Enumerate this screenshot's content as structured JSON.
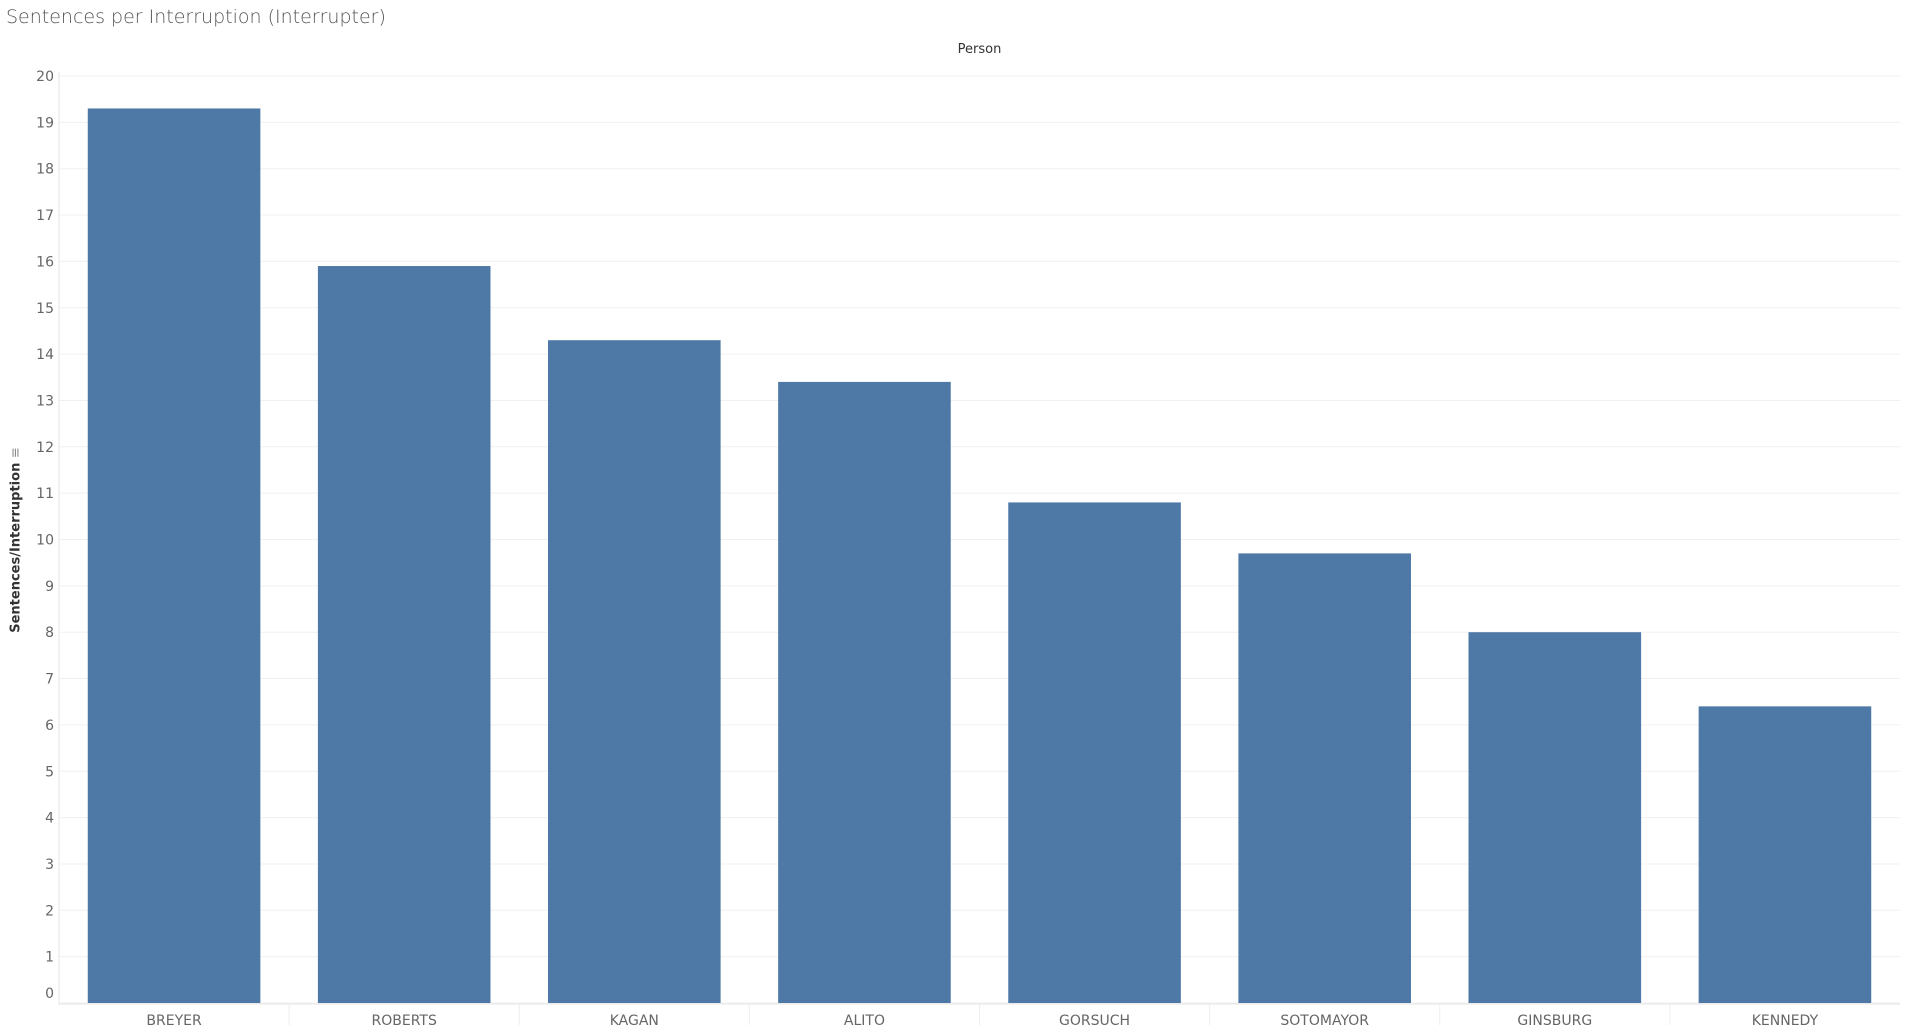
{
  "chart_data": {
    "type": "bar",
    "title": "Sentences per Interruption (Interrupter)",
    "column_header": "Person",
    "xlabel": "",
    "ylabel": "Sentences/Interruption",
    "ylim": [
      0,
      20
    ],
    "yticks": [
      0,
      1,
      2,
      3,
      4,
      5,
      6,
      7,
      8,
      9,
      10,
      11,
      12,
      13,
      14,
      15,
      16,
      17,
      18,
      19,
      20
    ],
    "grid": true,
    "color": "#4e79a7",
    "categories": [
      "BREYER",
      "ROBERTS",
      "KAGAN",
      "ALITO",
      "GORSUCH",
      "SOTOMAYOR",
      "GINSBURG",
      "KENNEDY"
    ],
    "values": [
      19.3,
      15.9,
      14.3,
      13.4,
      10.8,
      9.7,
      8.0,
      6.4
    ]
  }
}
